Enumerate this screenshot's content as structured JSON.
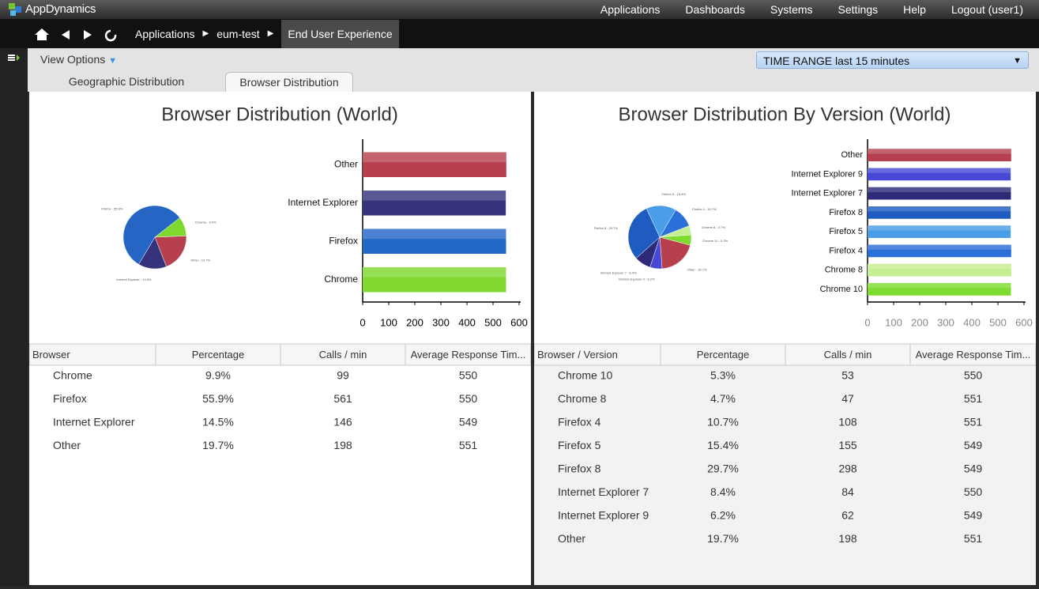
{
  "header": {
    "brand": "AppDynamics",
    "nav": [
      "Applications",
      "Dashboards",
      "Systems",
      "Settings",
      "Help",
      "Logout (user1)"
    ]
  },
  "breadcrumb": [
    "Applications",
    "eum-test",
    "End User Experience"
  ],
  "toolbar": {
    "view_options": "View Options",
    "time_range": "TIME RANGE last 15 minutes"
  },
  "tabs": [
    "Geographic Distribution",
    "Browser Distribution"
  ],
  "panels": [
    {
      "title": "Browser Distribution (World)",
      "pie": {
        "labels": [
          "Chrome - 9.9%",
          "Other - 19.7%",
          "Internet Explorer - 14.5%",
          "Firefox - 55.9%"
        ],
        "values": [
          9.9,
          19.7,
          14.5,
          55.9
        ],
        "colors": [
          "#7fd82e",
          "#b7404f",
          "#34337c",
          "#2566c4"
        ]
      },
      "bar": {
        "categories": [
          "Other",
          "Internet Explorer",
          "Firefox",
          "Chrome"
        ],
        "values": [
          551,
          549,
          550,
          550
        ],
        "colors": [
          "#b7404f",
          "#36347e",
          "#2468c8",
          "#80d830"
        ],
        "xlim": [
          0,
          600
        ],
        "xticks": [
          0,
          100,
          200,
          300,
          400,
          500,
          600
        ]
      },
      "table": {
        "columns": [
          "Browser",
          "Percentage",
          "Calls / min",
          "Average Response Tim..."
        ],
        "rows": [
          [
            "Chrome",
            "9.9%",
            "99",
            "550"
          ],
          [
            "Firefox",
            "55.9%",
            "561",
            "550"
          ],
          [
            "Internet Explorer",
            "14.5%",
            "146",
            "549"
          ],
          [
            "Other",
            "19.7%",
            "198",
            "551"
          ]
        ]
      }
    },
    {
      "title": "Browser Distribution By Version (World)",
      "pie": {
        "labels": [
          "Firefox 5 - 15.4%",
          "Firefox 4 - 10.7%",
          "Chrome 8 - 4.7%",
          "Chrome 10 - 5.3%",
          "Other - 19.7%",
          "Internet Explorer 9 - 6.2%",
          "Internet Explorer 7 - 8.4%",
          "Firefox 8 - 29.7%"
        ],
        "values": [
          15.4,
          10.7,
          4.7,
          5.3,
          19.7,
          6.2,
          8.4,
          29.7
        ],
        "colors": [
          "#4a9ee8",
          "#2a70d8",
          "#c6ee92",
          "#7edc30",
          "#b7404f",
          "#4848d6",
          "#2e2a78",
          "#1e5cc0"
        ]
      },
      "bar": {
        "categories": [
          "Other",
          "Internet Explorer 9",
          "Internet Explorer 7",
          "Firefox 8",
          "Firefox 5",
          "Firefox 4",
          "Chrome 8",
          "Chrome 10"
        ],
        "values": [
          551,
          549,
          550,
          549,
          549,
          551,
          551,
          550
        ],
        "colors": [
          "#b7404f",
          "#4848d6",
          "#2e2a78",
          "#1e5cc0",
          "#4a9ee8",
          "#2a70d8",
          "#c6ee92",
          "#7edc30"
        ],
        "xlim": [
          0,
          600
        ],
        "xticks": [
          0,
          100,
          200,
          300,
          400,
          500,
          600
        ]
      },
      "table": {
        "columns": [
          "Browser / Version",
          "Percentage",
          "Calls / min",
          "Average Response Tim..."
        ],
        "rows": [
          [
            "Chrome 10",
            "5.3%",
            "53",
            "550"
          ],
          [
            "Chrome 8",
            "4.7%",
            "47",
            "551"
          ],
          [
            "Firefox 4",
            "10.7%",
            "108",
            "551"
          ],
          [
            "Firefox 5",
            "15.4%",
            "155",
            "549"
          ],
          [
            "Firefox 8",
            "29.7%",
            "298",
            "549"
          ],
          [
            "Internet Explorer 7",
            "8.4%",
            "84",
            "550"
          ],
          [
            "Internet Explorer 9",
            "6.2%",
            "62",
            "549"
          ],
          [
            "Other",
            "19.7%",
            "198",
            "551"
          ]
        ]
      }
    }
  ]
}
